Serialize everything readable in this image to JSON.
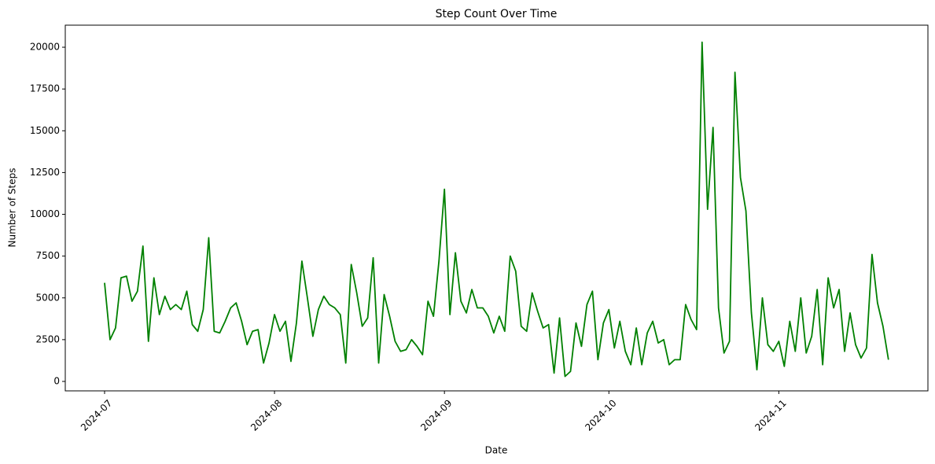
{
  "chart_data": {
    "type": "line",
    "title": "Step Count Over Time",
    "x_label": "Date",
    "y_label": "Number of Steps",
    "color": "#008000",
    "grid": false,
    "values": [
      5900,
      2500,
      3200,
      6200,
      6300,
      4800,
      5400,
      8100,
      2400,
      6200,
      4000,
      5100,
      4300,
      4600,
      4300,
      5400,
      3400,
      3000,
      4300,
      8600,
      3000,
      2900,
      3600,
      4400,
      4700,
      3600,
      2200,
      3000,
      3100,
      1100,
      2300,
      4000,
      3000,
      3600,
      1200,
      3500,
      7200,
      5000,
      2700,
      4300,
      5100,
      4600,
      4400,
      4000,
      1100,
      7000,
      5300,
      3300,
      3800,
      7400,
      1100,
      5200,
      3900,
      2400,
      1800,
      1900,
      2500,
      2100,
      1600,
      4800,
      3900,
      7200,
      11500,
      4000,
      7700,
      4800,
      4100,
      5500,
      4400,
      4400,
      3900,
      2900,
      3900,
      3000,
      7500,
      6600,
      3300,
      3000,
      5300,
      4200,
      3200,
      3400,
      500,
      3800,
      300,
      600,
      3500,
      2100,
      4600,
      5400,
      1300,
      3500,
      4300,
      2000,
      3600,
      1800,
      1000,
      3200,
      1000,
      2900,
      3600,
      2300,
      2500,
      1000,
      1300,
      1300,
      4600,
      3700,
      3100,
      20300,
      10300,
      15200,
      4400,
      1700,
      2400,
      18500,
      12200,
      10200,
      4100,
      700,
      5000,
      2200,
      1800,
      2400,
      900,
      3600,
      1800,
      5000,
      1700,
      2700,
      5500,
      1000,
      6200,
      4400,
      5500,
      1800,
      4100,
      2200,
      1400,
      2000,
      7600,
      4700,
      3300,
      1300
    ],
    "xlim": [
      -7.17,
      150.2
    ],
    "xticks": [
      {
        "value": 0,
        "label": "2024-07"
      },
      {
        "value": 31,
        "label": "2024-08"
      },
      {
        "value": 62,
        "label": "2024-09"
      },
      {
        "value": 92,
        "label": "2024-10"
      },
      {
        "value": 123,
        "label": "2024-11"
      }
    ],
    "ylim": [
      -565,
      21320
    ],
    "yticks": [
      0,
      2500,
      5000,
      7500,
      10000,
      12500,
      15000,
      17500,
      20000
    ]
  }
}
